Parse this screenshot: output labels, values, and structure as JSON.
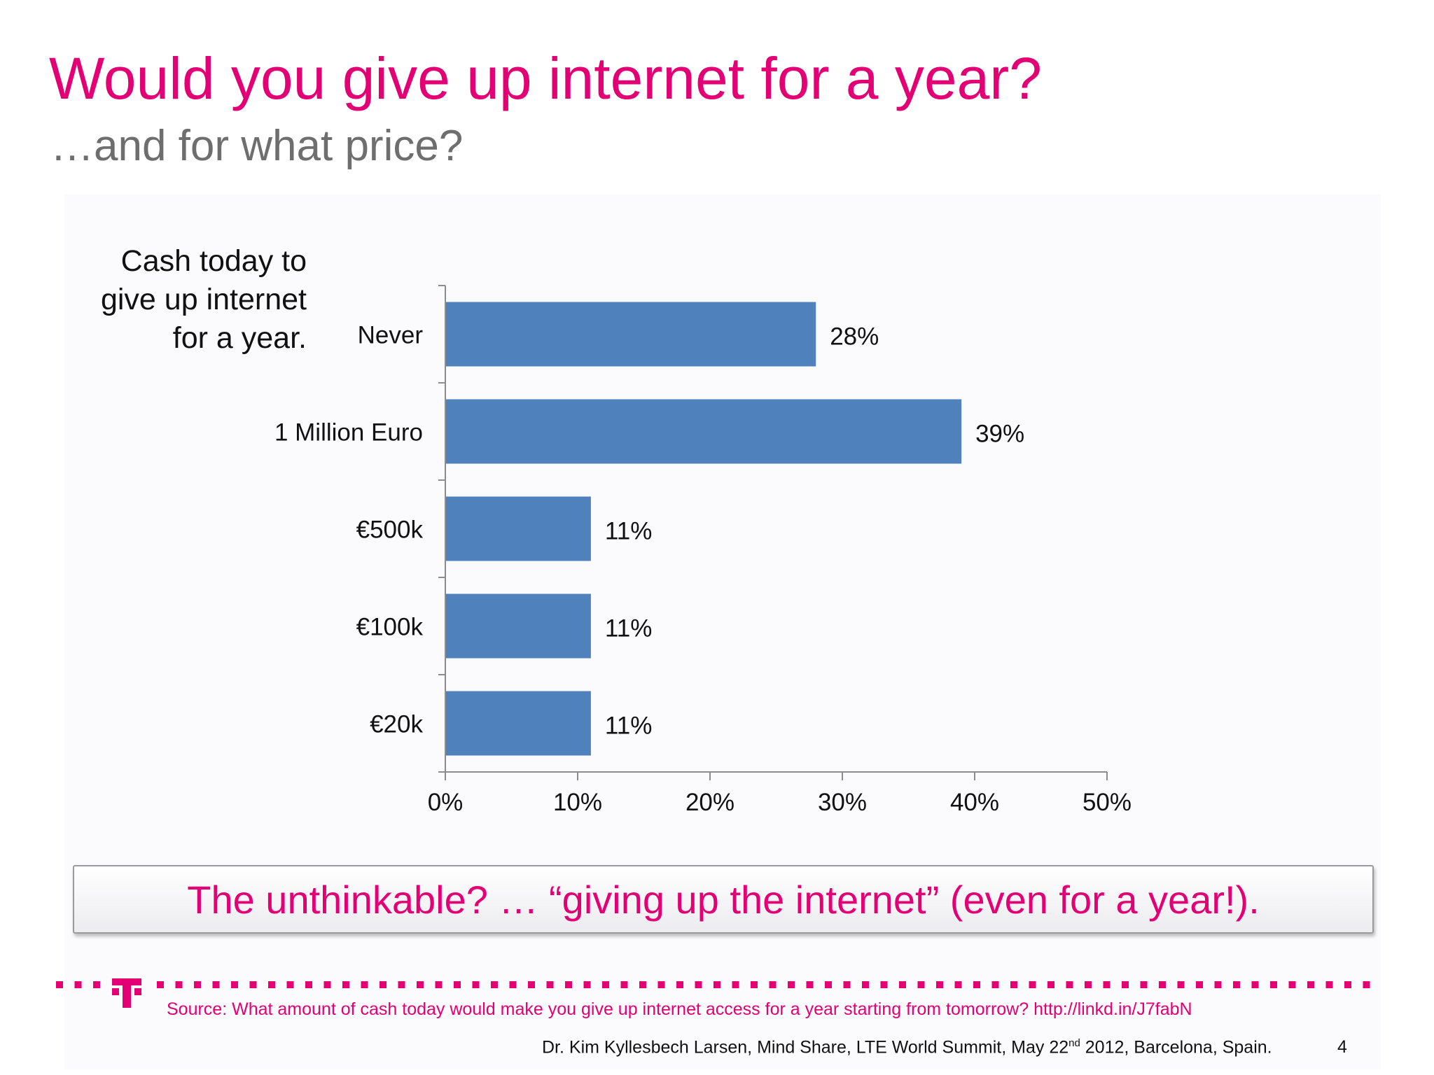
{
  "slide": {
    "title": "Would you give up internet for a year?",
    "subtitle": "…and for what price?",
    "side_label_lines": [
      "Cash today to",
      "give up internet",
      "for a year."
    ],
    "callout": "The unthinkable? … “giving up the internet” (even for a year!).",
    "source": "Source: What amount of cash today would make you give up internet access for a year starting from tomorrow? http://linkd.in/J7fabN",
    "footer": {
      "before": "Dr. Kim Kyllesbech Larsen, Mind Share, LTE World Summit, May 22",
      "sup": "nd",
      "after": " 2012, Barcelona, Spain."
    },
    "page_number": "4"
  },
  "colors": {
    "accent": "#e20074",
    "bar": "#4f81bd",
    "axis": "#8c8c8c"
  },
  "icons": {
    "logo": "telekom-t-logo"
  },
  "chart_data": {
    "type": "bar",
    "orientation": "horizontal",
    "categories": [
      "Never",
      "1 Million Euro",
      "€500k",
      "€100k",
      "€20k"
    ],
    "values": [
      28,
      39,
      11,
      11,
      11
    ],
    "data_labels": [
      "28%",
      "39%",
      "11%",
      "11%",
      "11%"
    ],
    "xlim": [
      0,
      50
    ],
    "x_ticks": [
      0,
      10,
      20,
      30,
      40,
      50
    ],
    "x_tick_labels": [
      "0%",
      "10%",
      "20%",
      "30%",
      "40%",
      "50%"
    ],
    "grid": false,
    "legend": "none"
  }
}
